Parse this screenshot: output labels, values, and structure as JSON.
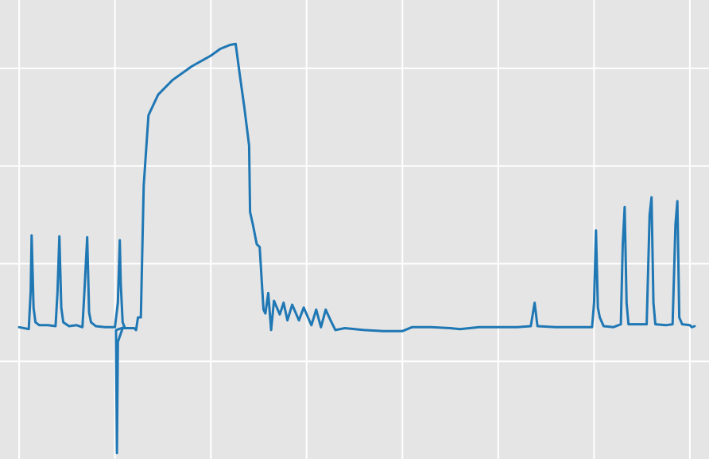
{
  "chart_data": {
    "type": "line",
    "title": "",
    "xlabel": "",
    "ylabel": "",
    "grid": true,
    "style": "ggplot",
    "colors": {
      "background": "#e5e5e5",
      "grid": "#ffffff",
      "line": "#1f77b4"
    },
    "xlim": [
      -0.2,
      7.2
    ],
    "ylim": [
      -1.0,
      3.7
    ],
    "xticks": [
      0,
      1,
      2,
      3,
      4,
      5,
      6,
      7
    ],
    "yticks": [
      0,
      1,
      2,
      3
    ],
    "series": [
      {
        "values": [
          [
            0.0,
            0.35
          ],
          [
            0.1,
            0.33
          ],
          [
            0.12,
            0.72
          ],
          [
            0.13,
            1.29
          ],
          [
            0.15,
            0.55
          ],
          [
            0.17,
            0.4
          ],
          [
            0.21,
            0.37
          ],
          [
            0.3,
            0.37
          ],
          [
            0.38,
            0.36
          ],
          [
            0.4,
            0.7
          ],
          [
            0.42,
            1.28
          ],
          [
            0.44,
            0.55
          ],
          [
            0.46,
            0.4
          ],
          [
            0.52,
            0.36
          ],
          [
            0.6,
            0.37
          ],
          [
            0.66,
            0.35
          ],
          [
            0.68,
            0.7
          ],
          [
            0.71,
            1.27
          ],
          [
            0.73,
            0.5
          ],
          [
            0.75,
            0.4
          ],
          [
            0.8,
            0.36
          ],
          [
            0.9,
            0.35
          ],
          [
            0.95,
            0.35
          ],
          [
            1.0,
            0.35
          ],
          [
            1.03,
            0.6
          ],
          [
            1.05,
            1.24
          ],
          [
            1.06,
            0.8
          ],
          [
            1.08,
            0.4
          ],
          [
            1.1,
            0.35
          ],
          [
            1.01,
            0.32
          ],
          [
            1.02,
            -0.94
          ],
          [
            1.03,
            0.2
          ],
          [
            1.08,
            0.34
          ],
          [
            1.15,
            0.34
          ],
          [
            1.2,
            0.34
          ],
          [
            1.22,
            0.32
          ],
          [
            1.24,
            0.45
          ],
          [
            1.27,
            0.45
          ],
          [
            1.3,
            1.8
          ],
          [
            1.35,
            2.52
          ],
          [
            1.45,
            2.73
          ],
          [
            1.6,
            2.88
          ],
          [
            1.8,
            3.02
          ],
          [
            2.0,
            3.13
          ],
          [
            2.1,
            3.2
          ],
          [
            2.2,
            3.24
          ],
          [
            2.26,
            3.25
          ],
          [
            2.3,
            2.95
          ],
          [
            2.35,
            2.6
          ],
          [
            2.4,
            2.21
          ],
          [
            2.41,
            1.53
          ],
          [
            2.44,
            1.4
          ],
          [
            2.48,
            1.2
          ],
          [
            2.51,
            1.17
          ],
          [
            2.55,
            0.53
          ],
          [
            2.57,
            0.49
          ],
          [
            2.6,
            0.7
          ],
          [
            2.63,
            0.32
          ],
          [
            2.66,
            0.62
          ],
          [
            2.72,
            0.48
          ],
          [
            2.76,
            0.6
          ],
          [
            2.8,
            0.42
          ],
          [
            2.85,
            0.58
          ],
          [
            2.92,
            0.42
          ],
          [
            2.97,
            0.55
          ],
          [
            3.05,
            0.37
          ],
          [
            3.1,
            0.53
          ],
          [
            3.15,
            0.35
          ],
          [
            3.2,
            0.53
          ],
          [
            3.25,
            0.42
          ],
          [
            3.3,
            0.32
          ],
          [
            3.4,
            0.34
          ],
          [
            3.6,
            0.32
          ],
          [
            3.8,
            0.31
          ],
          [
            4.0,
            0.31
          ],
          [
            4.1,
            0.35
          ],
          [
            4.3,
            0.35
          ],
          [
            4.5,
            0.34
          ],
          [
            4.6,
            0.33
          ],
          [
            4.8,
            0.35
          ],
          [
            5.0,
            0.35
          ],
          [
            5.2,
            0.35
          ],
          [
            5.34,
            0.36
          ],
          [
            5.38,
            0.6
          ],
          [
            5.41,
            0.36
          ],
          [
            5.6,
            0.35
          ],
          [
            5.8,
            0.35
          ],
          [
            5.98,
            0.35
          ],
          [
            6.0,
            0.6
          ],
          [
            6.02,
            1.34
          ],
          [
            6.04,
            0.55
          ],
          [
            6.06,
            0.45
          ],
          [
            6.1,
            0.36
          ],
          [
            6.2,
            0.35
          ],
          [
            6.28,
            0.38
          ],
          [
            6.3,
            1.2
          ],
          [
            6.32,
            1.58
          ],
          [
            6.34,
            0.6
          ],
          [
            6.36,
            0.38
          ],
          [
            6.45,
            0.38
          ],
          [
            6.55,
            0.38
          ],
          [
            6.58,
            1.5
          ],
          [
            6.6,
            1.68
          ],
          [
            6.62,
            0.6
          ],
          [
            6.64,
            0.38
          ],
          [
            6.75,
            0.37
          ],
          [
            6.82,
            0.38
          ],
          [
            6.85,
            1.4
          ],
          [
            6.87,
            1.64
          ],
          [
            6.89,
            0.45
          ],
          [
            6.92,
            0.38
          ],
          [
            7.0,
            0.37
          ],
          [
            7.02,
            0.35
          ],
          [
            7.05,
            0.36
          ]
        ]
      }
    ]
  }
}
